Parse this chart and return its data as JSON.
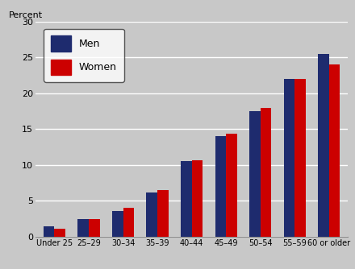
{
  "categories": [
    "Under 25",
    "25–29",
    "30–34",
    "35–39",
    "40–44",
    "45–49",
    "50–54",
    "55–59",
    "60 or older"
  ],
  "men": [
    1.4,
    2.5,
    3.6,
    6.2,
    10.5,
    14.0,
    17.5,
    22.0,
    25.5
  ],
  "women": [
    1.1,
    2.5,
    4.0,
    6.5,
    10.7,
    14.4,
    18.0,
    22.0,
    24.0
  ],
  "men_color": "#1e2b6e",
  "women_color": "#cc0000",
  "ylabel": "Percent",
  "ylim": [
    0,
    30
  ],
  "yticks": [
    0,
    5,
    10,
    15,
    20,
    25,
    30
  ],
  "bg_color": "#c8c8c8",
  "plot_bg": "#c8c8c8",
  "grid_color": "#ffffff",
  "bar_width": 0.32,
  "legend_men": "Men",
  "legend_women": "Women"
}
